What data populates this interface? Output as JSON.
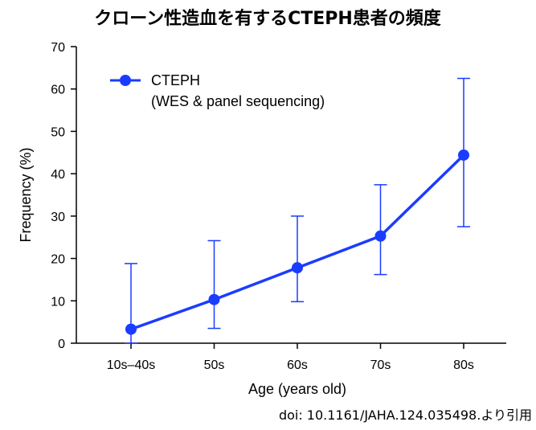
{
  "chart_data": {
    "type": "line",
    "title": "クローン性造血を有するCTEPH患者の頻度",
    "xlabel": "Age (years old)",
    "ylabel": "Frequency (%)",
    "ylim": [
      0,
      70
    ],
    "yticks": [
      "0",
      "10",
      "20",
      "30",
      "40",
      "50",
      "60",
      "70"
    ],
    "categories": [
      "10s–40s",
      "50s",
      "60s",
      "70s",
      "80s"
    ],
    "series": [
      {
        "name": "CTEPH",
        "name_line2": "(WES & panel sequencing)",
        "color": "#1a3cff",
        "values": [
          3.3,
          10.3,
          17.8,
          25.3,
          44.4
        ],
        "error_low": [
          0,
          3.5,
          9.8,
          16.2,
          27.5
        ],
        "error_high": [
          18.8,
          24.2,
          30.0,
          37.4,
          62.5
        ]
      }
    ],
    "legend_position": "top-left",
    "grid": false
  },
  "source_note": "doi: 10.1161/JAHA.124.035498.より引用"
}
